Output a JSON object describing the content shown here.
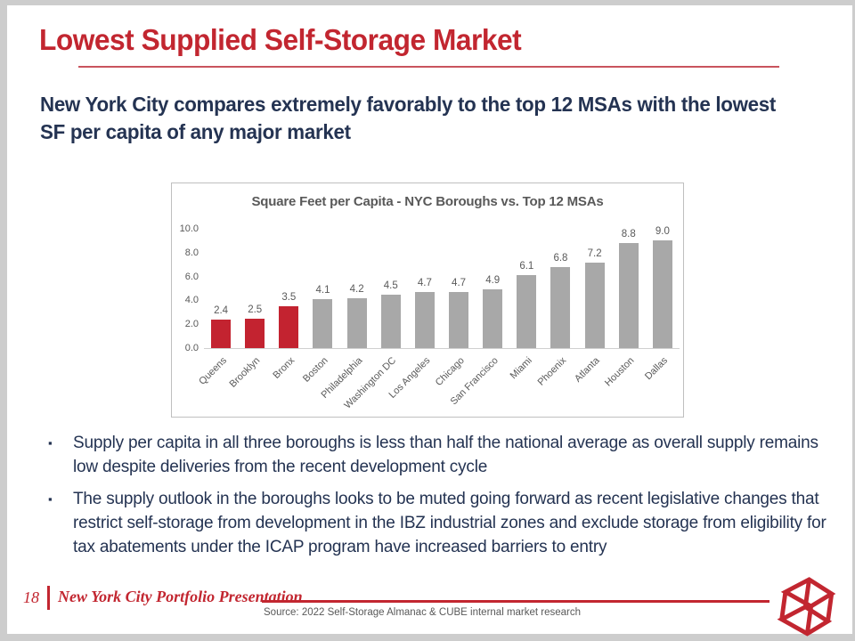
{
  "slide": {
    "title": "Lowest Supplied Self-Storage Market",
    "subtitle": "New York City compares extremely favorably to the top 12 MSAs with the lowest SF per capita of any major market",
    "bullets": [
      "Supply per capita in all three boroughs is less than half the national average as overall supply remains low despite deliveries from the recent development cycle",
      "The supply outlook in the boroughs looks to be muted going forward as recent legislative changes that restrict self-storage from development in the IBZ industrial zones and exclude storage from eligibility for tax abatements under the ICAP program have increased barriers to entry"
    ],
    "bullet_marker": "▪",
    "footer": {
      "page_number": "18",
      "brand": "New York City Portfolio Presentation",
      "source": "Source: 2022 Self-Storage Almanac & CUBE internal market research",
      "logo": "cubesmart-cube-logo"
    },
    "colors": {
      "accent_red": "#C22630",
      "navy": "#243352",
      "text_gray": "#595959",
      "bar_red": "#C32330",
      "bar_gray": "#A8A8A8"
    }
  },
  "chart_data": {
    "type": "bar",
    "title": "Square Feet per Capita - NYC Boroughs vs. Top 12 MSAs",
    "categories": [
      "Queens",
      "Brooklyn",
      "Bronx",
      "Boston",
      "Philadelphia",
      "Washington DC",
      "Los Angeles",
      "Chicago",
      "San Francisco",
      "Miami",
      "Phoenix",
      "Atlanta",
      "Houston",
      "Dallas"
    ],
    "values": [
      2.4,
      2.5,
      3.5,
      4.1,
      4.2,
      4.5,
      4.7,
      4.7,
      4.9,
      6.1,
      6.8,
      7.2,
      8.8,
      9.0
    ],
    "highlight_first_n": 3,
    "highlighted_categories": [
      "Queens",
      "Brooklyn",
      "Bronx"
    ],
    "xlabel": "",
    "ylabel": "",
    "ylim": [
      0,
      10
    ],
    "yticks": [
      "10.0",
      "8.0",
      "6.0",
      "4.0",
      "2.0",
      "0.0"
    ],
    "grid": false,
    "data_labels": true,
    "legend": "none",
    "x_tick_rotation": 45
  }
}
